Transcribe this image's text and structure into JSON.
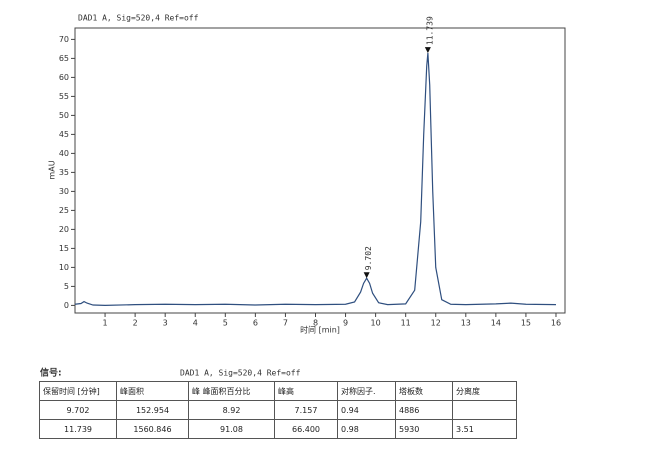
{
  "chart_data": {
    "type": "line",
    "title": "DAD1 A, Sig=520,4 Ref=off",
    "x_label": "时间 [min]",
    "y_label": "mAU",
    "color": "#2f4f7f",
    "x": [
      0,
      0.2,
      0.3,
      0.4,
      0.6,
      1,
      2,
      3,
      4,
      5,
      6,
      7,
      8,
      9,
      9.3,
      9.5,
      9.6,
      9.702,
      9.8,
      9.9,
      10.1,
      10.4,
      11,
      11.3,
      11.5,
      11.6,
      11.7,
      11.739,
      11.8,
      11.9,
      12.0,
      12.2,
      12.5,
      13,
      14,
      14.5,
      15,
      16
    ],
    "values": [
      0.3,
      0.5,
      1.0,
      0.6,
      0.1,
      0.0,
      0.2,
      0.3,
      0.2,
      0.3,
      0.1,
      0.3,
      0.2,
      0.3,
      0.9,
      3.5,
      5.8,
      7.157,
      5.8,
      3.2,
      0.7,
      0.2,
      0.4,
      4,
      22,
      45,
      63,
      66.4,
      58,
      30,
      10,
      1.5,
      0.3,
      0.2,
      0.4,
      0.6,
      0.3,
      0.2
    ],
    "xlim": [
      0,
      16.3
    ],
    "ylim": [
      -2,
      73
    ],
    "xticks": [
      1,
      2,
      3,
      4,
      5,
      6,
      7,
      8,
      9,
      10,
      11,
      12,
      13,
      14,
      15,
      16
    ],
    "yticks": [
      0,
      5,
      10,
      15,
      20,
      25,
      30,
      35,
      40,
      45,
      50,
      55,
      60,
      65,
      70
    ],
    "peaks": [
      {
        "x": 9.702,
        "y": 7.157,
        "label": "9.702"
      },
      {
        "x": 11.739,
        "y": 66.4,
        "label": "11.739"
      }
    ]
  },
  "table": {
    "signal_label": "信号:",
    "signal": "DAD1 A, Sig=520,4 Ref=off",
    "header": [
      "保留时间 [分钟]",
      "峰面积",
      "峰 峰面积百分比",
      "峰高",
      "对称因子.",
      "塔板数",
      "分离度"
    ],
    "rows": [
      [
        "9.702",
        "152.954",
        "8.92",
        "7.157",
        "0.94",
        "4886",
        ""
      ],
      [
        "11.739",
        "1560.846",
        "91.08",
        "66.400",
        "0.98",
        "5930",
        "3.51"
      ]
    ]
  }
}
